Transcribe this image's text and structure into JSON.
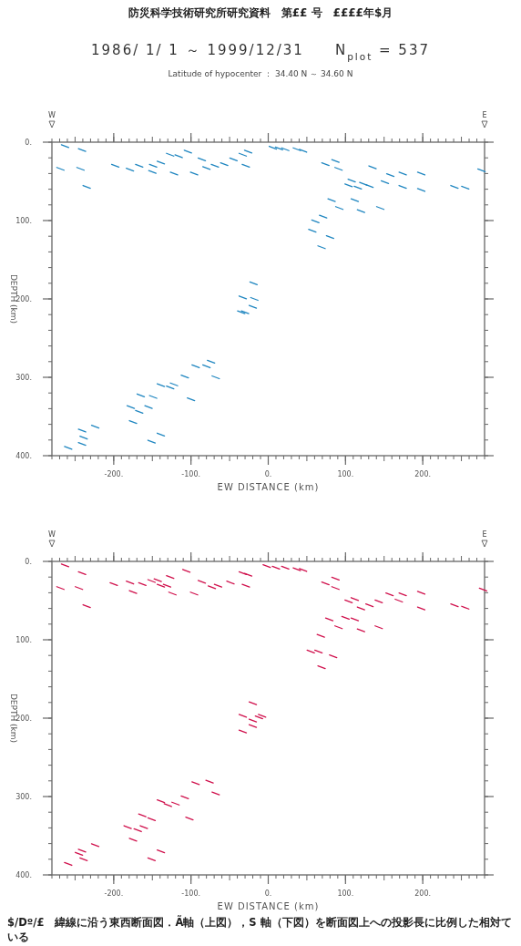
{
  "chart_data": [
    {
      "type": "scatter",
      "title": "1986/ 1/ 1 ～ 1999/12/31　　N$_{plot}$ = 537",
      "subtitle": "Latitude of hypocenter ： 34.40 N ～ 34.60 N",
      "xlabel": "EW DISTANCE (km)",
      "ylabel": "DEPTH (km)",
      "color": "#1f86c0",
      "xlim": [
        -280,
        280
      ],
      "ylim": [
        400,
        0
      ],
      "xticks": [
        {
          "value": -200,
          "label": "-200."
        },
        {
          "value": -100,
          "label": "-100."
        },
        {
          "value": 0,
          "label": "0."
        },
        {
          "value": 100,
          "label": "100."
        },
        {
          "value": 200,
          "label": "200."
        }
      ],
      "yticks": [
        {
          "value": 0,
          "label": "0."
        },
        {
          "value": 100,
          "label": "100."
        },
        {
          "value": 200,
          "label": "200."
        },
        {
          "value": 300,
          "label": "300."
        },
        {
          "value": 400,
          "label": "400."
        }
      ],
      "annotations": [
        "防災科学技術研究所研究資料　第££ 号　££££年$月",
        "W",
        "E"
      ],
      "x": [
        -263,
        -269,
        -243,
        -235,
        -241,
        -198,
        -179,
        -167,
        -149,
        -150,
        -139,
        -127,
        -116,
        -104,
        -122,
        -96,
        -86,
        -80,
        -69,
        -57,
        -45,
        -33,
        -26,
        -29,
        14,
        6,
        22,
        37,
        45,
        74,
        87,
        91,
        108,
        104,
        116,
        123,
        131,
        112,
        120,
        135,
        151,
        158,
        174,
        174,
        198,
        198,
        241,
        255,
        276,
        82,
        92,
        145,
        71,
        61,
        57,
        80,
        69,
        -19,
        -33,
        -18,
        -20,
        -30,
        -35,
        -74,
        -80,
        -94,
        -68,
        -108,
        -122,
        -127,
        -139,
        -100,
        -165,
        -149,
        -155,
        -167,
        -178,
        -175,
        -139,
        -151,
        -224,
        -241,
        -239,
        -241,
        -259
      ],
      "values": [
        5,
        34,
        34,
        57,
        10,
        30,
        35,
        30,
        30,
        38,
        26,
        16,
        18,
        12,
        40,
        40,
        22,
        33,
        30,
        28,
        22,
        16,
        12,
        30,
        8,
        7,
        9,
        9,
        11,
        28,
        24,
        34,
        49,
        55,
        58,
        53,
        56,
        74,
        88,
        32,
        51,
        42,
        40,
        57,
        40,
        61,
        57,
        58,
        36,
        74,
        84,
        84,
        95,
        101,
        113,
        121,
        134,
        180,
        198,
        200,
        210,
        217,
        217,
        280,
        286,
        286,
        300,
        299,
        309,
        313,
        310,
        328,
        323,
        325,
        338,
        344,
        338,
        357,
        373,
        382,
        363,
        368,
        377,
        385,
        390
      ]
    },
    {
      "type": "scatter",
      "xlabel": "EW DISTANCE (km)",
      "ylabel": "DEPTH (km)",
      "color": "#d0104c",
      "xlim": [
        -280,
        280
      ],
      "ylim": [
        400,
        0
      ],
      "xticks": [
        {
          "value": -200,
          "label": "-200."
        },
        {
          "value": -100,
          "label": "-100."
        },
        {
          "value": 0,
          "label": "0."
        },
        {
          "value": 100,
          "label": "100."
        },
        {
          "value": 200,
          "label": "200."
        }
      ],
      "yticks": [
        {
          "value": 0,
          "label": "0."
        },
        {
          "value": 100,
          "label": "100."
        },
        {
          "value": 200,
          "label": "200."
        },
        {
          "value": 300,
          "label": "300."
        },
        {
          "value": 400,
          "label": "400."
        }
      ],
      "annotations": [
        "W",
        "E",
        "$/Dº/£　緯線に沿う東西断面図．Ã軸（上図），S 軸（下図）を断面図上への投影長に比例した相対ている"
      ],
      "x": [
        -263,
        -269,
        -241,
        -245,
        -235,
        -200,
        -179,
        -175,
        -163,
        -151,
        -143,
        -139,
        -131,
        -124,
        -127,
        -106,
        -96,
        -86,
        -73,
        -65,
        -49,
        -33,
        -26,
        -29,
        10,
        -2,
        22,
        37,
        45,
        74,
        87,
        87,
        104,
        112,
        120,
        131,
        112,
        100,
        120,
        143,
        143,
        157,
        169,
        174,
        198,
        198,
        241,
        255,
        278,
        79,
        91,
        68,
        55,
        65,
        84,
        69,
        -20,
        -33,
        -8,
        -12,
        -20,
        -33,
        -20,
        -76,
        -94,
        -68,
        -108,
        -120,
        -130,
        -139,
        -102,
        -163,
        -151,
        -161,
        -169,
        -182,
        -175,
        -139,
        -151,
        -224,
        -241,
        -245,
        -239,
        -259
      ],
      "values": [
        5,
        34,
        15,
        34,
        57,
        29,
        27,
        39,
        29,
        25,
        24,
        31,
        31,
        41,
        20,
        12,
        41,
        26,
        33,
        31,
        27,
        15,
        17,
        31,
        8,
        6,
        8,
        10,
        11,
        28,
        22,
        34,
        51,
        48,
        60,
        56,
        74,
        72,
        88,
        84,
        51,
        42,
        50,
        42,
        40,
        60,
        56,
        59,
        36,
        74,
        84,
        95,
        115,
        115,
        121,
        135,
        181,
        197,
        197,
        199,
        203,
        217,
        210,
        281,
        283,
        296,
        301,
        309,
        311,
        306,
        328,
        324,
        329,
        339,
        343,
        339,
        355,
        370,
        380,
        362,
        369,
        373,
        380,
        386
      ]
    }
  ]
}
